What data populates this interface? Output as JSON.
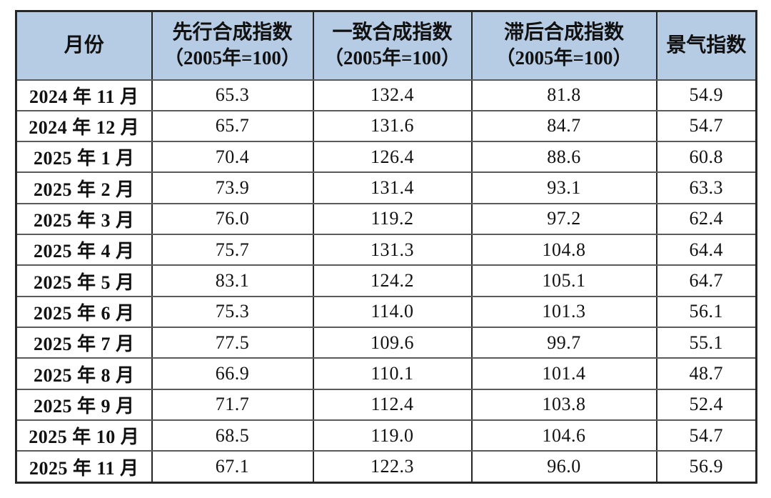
{
  "table": {
    "header": {
      "month_label": "月份",
      "cols": [
        {
          "title": "先行合成指数",
          "subtitle": "（2005年=100）"
        },
        {
          "title": "一致合成指数",
          "subtitle": "（2005年=100）"
        },
        {
          "title": "滞后合成指数",
          "subtitle": "（2005年=100）"
        },
        {
          "title": "景气指数",
          "subtitle": ""
        }
      ]
    },
    "rows": [
      {
        "month": "2024 年 11 月",
        "leading": "65.3",
        "coincident": "132.4",
        "lagging": "81.8",
        "prosperity": "54.9"
      },
      {
        "month": "2024 年 12 月",
        "leading": "65.7",
        "coincident": "131.6",
        "lagging": "84.7",
        "prosperity": "54.7"
      },
      {
        "month": "2025 年 1 月",
        "leading": "70.4",
        "coincident": "126.4",
        "lagging": "88.6",
        "prosperity": "60.8"
      },
      {
        "month": "2025 年 2 月",
        "leading": "73.9",
        "coincident": "131.4",
        "lagging": "93.1",
        "prosperity": "63.3"
      },
      {
        "month": "2025 年 3 月",
        "leading": "76.0",
        "coincident": "119.2",
        "lagging": "97.2",
        "prosperity": "62.4"
      },
      {
        "month": "2025 年 4 月",
        "leading": "75.7",
        "coincident": "131.3",
        "lagging": "104.8",
        "prosperity": "64.4"
      },
      {
        "month": "2025 年 5 月",
        "leading": "83.1",
        "coincident": "124.2",
        "lagging": "105.1",
        "prosperity": "64.7"
      },
      {
        "month": "2025 年 6 月",
        "leading": "75.3",
        "coincident": "114.0",
        "lagging": "101.3",
        "prosperity": "56.1"
      },
      {
        "month": "2025 年 7 月",
        "leading": "77.5",
        "coincident": "109.6",
        "lagging": "99.7",
        "prosperity": "55.1"
      },
      {
        "month": "2025 年 8 月",
        "leading": "66.9",
        "coincident": "110.1",
        "lagging": "101.4",
        "prosperity": "48.7"
      },
      {
        "month": "2025 年 9 月",
        "leading": "71.7",
        "coincident": "112.4",
        "lagging": "103.8",
        "prosperity": "52.4"
      },
      {
        "month": "2025 年 10 月",
        "leading": "68.5",
        "coincident": "119.0",
        "lagging": "104.6",
        "prosperity": "54.7"
      },
      {
        "month": "2025 年 11 月",
        "leading": "67.1",
        "coincident": "122.3",
        "lagging": "96.0",
        "prosperity": "56.9"
      }
    ]
  },
  "colors": {
    "header_bg": "#b6cbe4",
    "grid_border": "#262626",
    "row_border": "#5a5a5a",
    "text": "#111111",
    "page_bg": "#ffffff"
  },
  "chart_data": {
    "type": "table",
    "title": "",
    "columns": [
      "月份",
      "先行合成指数（2005年=100）",
      "一致合成指数（2005年=100）",
      "滞后合成指数（2005年=100）",
      "景气指数"
    ],
    "categories": [
      "2024年11月",
      "2024年12月",
      "2025年1月",
      "2025年2月",
      "2025年3月",
      "2025年4月",
      "2025年5月",
      "2025年6月",
      "2025年7月",
      "2025年8月",
      "2025年9月",
      "2025年10月",
      "2025年11月"
    ],
    "series": [
      {
        "name": "先行合成指数（2005年=100）",
        "values": [
          65.3,
          65.7,
          70.4,
          73.9,
          76.0,
          75.7,
          83.1,
          75.3,
          77.5,
          66.9,
          71.7,
          68.5,
          67.1
        ]
      },
      {
        "name": "一致合成指数（2005年=100）",
        "values": [
          132.4,
          131.6,
          126.4,
          131.4,
          119.2,
          131.3,
          124.2,
          114.0,
          109.6,
          110.1,
          112.4,
          119.0,
          122.3
        ]
      },
      {
        "name": "滞后合成指数（2005年=100）",
        "values": [
          81.8,
          84.7,
          88.6,
          93.1,
          97.2,
          104.8,
          105.1,
          101.3,
          99.7,
          101.4,
          103.8,
          104.6,
          96.0
        ]
      },
      {
        "name": "景气指数",
        "values": [
          54.9,
          54.7,
          60.8,
          63.3,
          62.4,
          64.4,
          64.7,
          56.1,
          55.1,
          48.7,
          52.4,
          54.7,
          56.9
        ]
      }
    ]
  }
}
